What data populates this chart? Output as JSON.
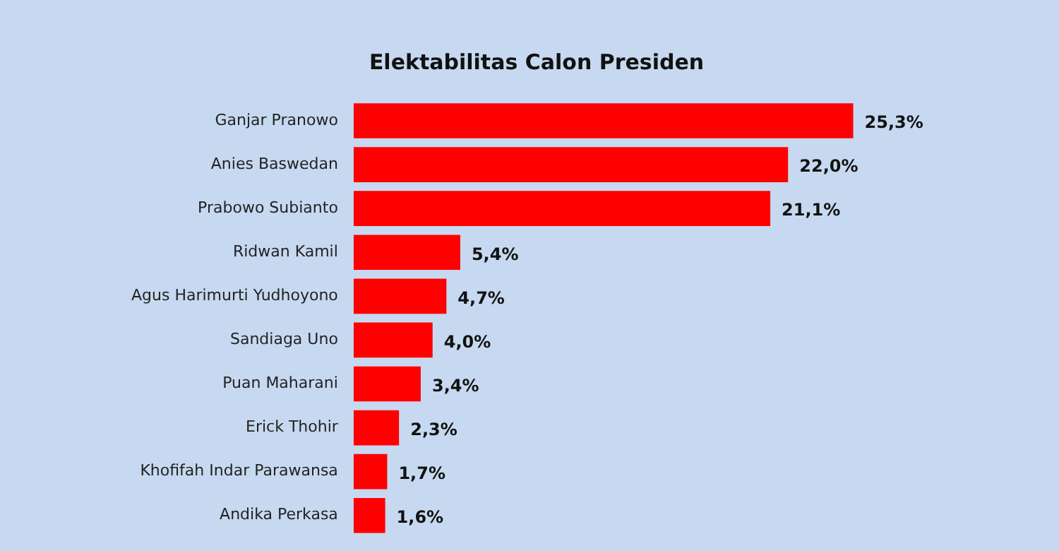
{
  "chart_data": {
    "type": "bar",
    "orientation": "horizontal",
    "title": "Elektabilitas Calon Presiden",
    "categories": [
      "Ganjar Pranowo",
      "Anies Baswedan",
      "Prabowo Subianto",
      "Ridwan Kamil",
      "Agus Harimurti Yudhoyono",
      "Sandiaga Uno",
      "Puan Maharani",
      "Erick Thohir",
      "Khofifah Indar Parawansa",
      "Andika Perkasa"
    ],
    "values": [
      25.3,
      22.0,
      21.1,
      5.4,
      4.7,
      4.0,
      3.4,
      2.3,
      1.7,
      1.6
    ],
    "value_labels": [
      "25,3%",
      "22,0%",
      "21,1%",
      "5,4%",
      "4,7%",
      "4,0%",
      "3,4%",
      "2,3%",
      "1,7%",
      "1,6%"
    ],
    "color": "#ff0000"
  }
}
